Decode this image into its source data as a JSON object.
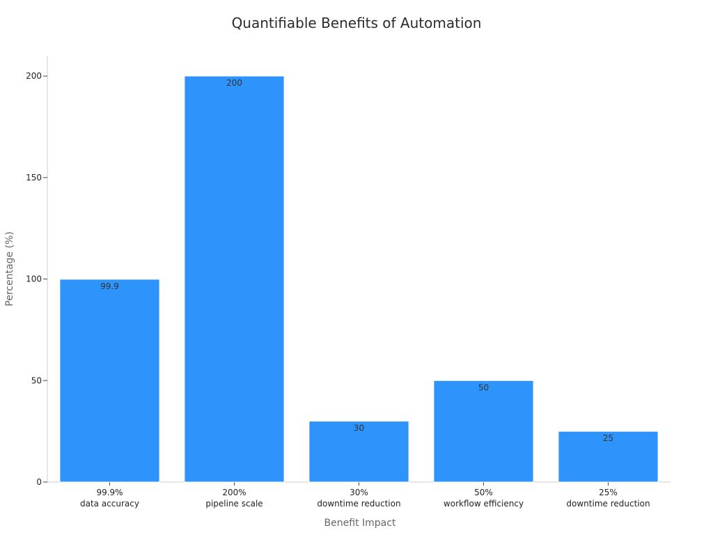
{
  "chart_data": {
    "type": "bar",
    "title": "Quantifiable Benefits of Automation",
    "xlabel": "Benefit Impact",
    "ylabel": "Percentage (%)",
    "categories": [
      [
        "99.9%",
        "data accuracy"
      ],
      [
        "200%",
        "pipeline scale"
      ],
      [
        "30%",
        "downtime reduction"
      ],
      [
        "50%",
        "workflow efficiency"
      ],
      [
        "25%",
        "downtime reduction"
      ]
    ],
    "values": [
      99.9,
      200,
      30,
      50,
      25
    ],
    "data_labels": [
      "99.9",
      "200",
      "30",
      "50",
      "25"
    ],
    "ylim": [
      0,
      210
    ],
    "yticks": [
      0,
      50,
      100,
      150,
      200
    ],
    "bar_color": "#2e93fa",
    "grid": false,
    "legend": "none"
  }
}
